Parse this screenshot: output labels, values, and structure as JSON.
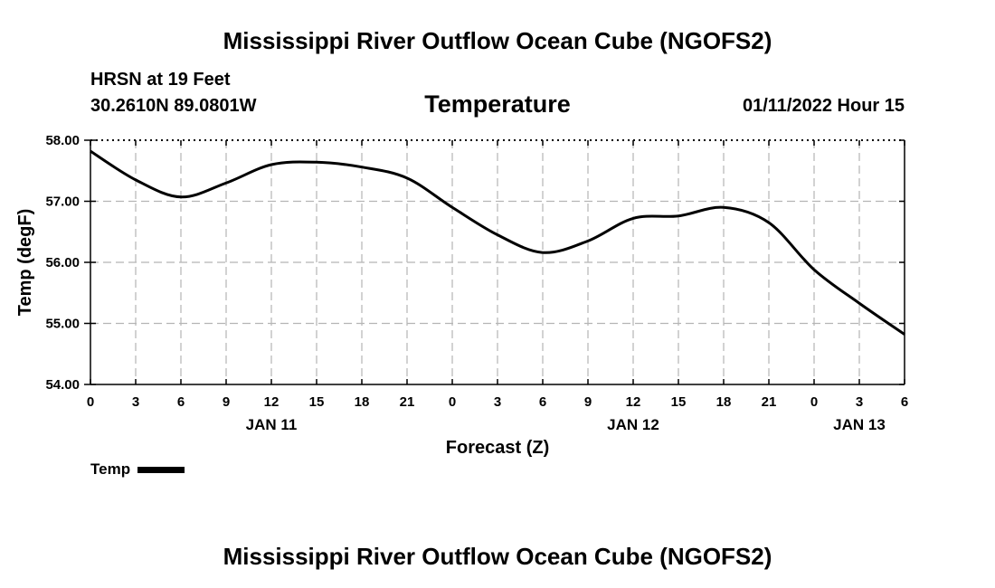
{
  "header": {
    "title": "Mississippi River Outflow Ocean Cube (NGOFS2)",
    "station": "HRSN at 19 Feet",
    "coords": "30.2610N  89.0801W",
    "subtitle": "Temperature",
    "timestamp": "01/11/2022 Hour 15"
  },
  "footer": {
    "title": "Mississippi River Outflow Ocean Cube (NGOFS2)"
  },
  "legend": {
    "label": "Temp",
    "color": "#000000"
  },
  "chart_data": {
    "type": "line",
    "title": "Temperature",
    "xlabel": "Forecast (Z)",
    "ylabel": "Temp (degF)",
    "xlim": [
      0,
      54
    ],
    "ylim": [
      54.0,
      58.0
    ],
    "grid": true,
    "x_ticks": [
      0,
      3,
      6,
      9,
      12,
      15,
      18,
      21,
      24,
      27,
      30,
      33,
      36,
      39,
      42,
      45,
      48,
      51,
      54
    ],
    "x_tick_labels": [
      "0",
      "3",
      "6",
      "9",
      "12",
      "15",
      "18",
      "21",
      "0",
      "3",
      "6",
      "9",
      "12",
      "15",
      "18",
      "21",
      "0",
      "3",
      "6"
    ],
    "date_labels": [
      {
        "x": 12,
        "label": "JAN 11"
      },
      {
        "x": 36,
        "label": "JAN 12"
      },
      {
        "x": 51,
        "label": "JAN 13"
      }
    ],
    "y_ticks": [
      54.0,
      55.0,
      56.0,
      57.0,
      58.0
    ],
    "y_tick_labels": [
      "54.00",
      "55.00",
      "56.00",
      "57.00",
      "58.00"
    ],
    "series": [
      {
        "name": "Temp",
        "color": "#000000",
        "x": [
          0,
          3,
          6,
          9,
          12,
          15,
          18,
          21,
          24,
          27,
          30,
          33,
          36,
          39,
          42,
          45,
          48,
          51,
          54
        ],
        "values": [
          57.82,
          57.35,
          57.07,
          57.3,
          57.6,
          57.64,
          57.56,
          57.38,
          56.9,
          56.45,
          56.16,
          56.35,
          56.72,
          56.76,
          56.9,
          56.65,
          55.88,
          55.33,
          54.82
        ]
      }
    ]
  }
}
